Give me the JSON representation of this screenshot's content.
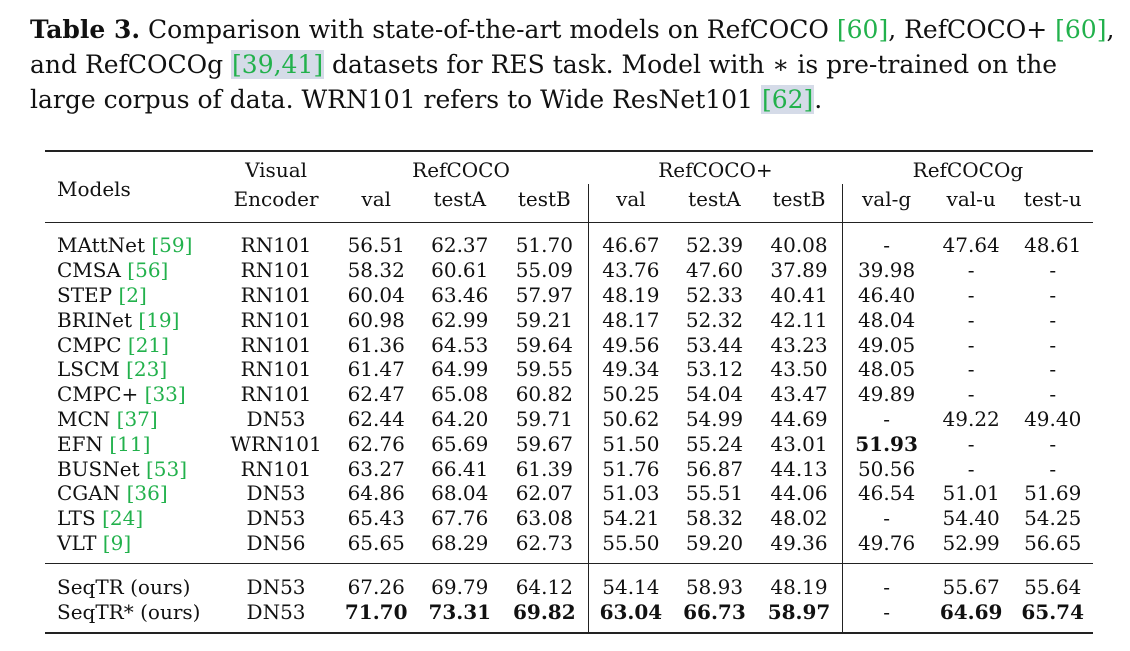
{
  "caption": {
    "label": "Table 3.",
    "text_1": " Comparison with state-of-the-art models on RefCOCO ",
    "cite_1": "[60]",
    "text_2": ", RefCOCO+ ",
    "cite_2": "[60]",
    "text_3": ", and RefCOCOg ",
    "cite_3": "[39,41]",
    "text_4": " datasets for RES task. Model with ∗ is pre-trained on the large corpus of data. WRN101 refers to Wide ResNet101 ",
    "cite_4": "[62]",
    "text_5": "."
  },
  "header": {
    "models": "Models",
    "visual": "Visual",
    "encoder": "Encoder",
    "groups": [
      "RefCOCO",
      "RefCOCO+",
      "RefCOCOg"
    ],
    "cols": [
      "val",
      "testA",
      "testB",
      "val",
      "testA",
      "testB",
      "val-g",
      "val-u",
      "test-u"
    ]
  },
  "rows": [
    {
      "name": "MAttNet ",
      "cite": "[59]",
      "enc": "RN101",
      "v": [
        "56.51",
        "62.37",
        "51.70",
        "46.67",
        "52.39",
        "40.08",
        "-",
        "47.64",
        "48.61"
      ]
    },
    {
      "name": "CMSA ",
      "cite": "[56]",
      "enc": "RN101",
      "v": [
        "58.32",
        "60.61",
        "55.09",
        "43.76",
        "47.60",
        "37.89",
        "39.98",
        "-",
        "-"
      ]
    },
    {
      "name": "STEP ",
      "cite": "[2]",
      "enc": "RN101",
      "v": [
        "60.04",
        "63.46",
        "57.97",
        "48.19",
        "52.33",
        "40.41",
        "46.40",
        "-",
        "-"
      ]
    },
    {
      "name": "BRINet ",
      "cite": "[19]",
      "enc": "RN101",
      "v": [
        "60.98",
        "62.99",
        "59.21",
        "48.17",
        "52.32",
        "42.11",
        "48.04",
        "-",
        "-"
      ]
    },
    {
      "name": "CMPC ",
      "cite": "[21]",
      "enc": "RN101",
      "v": [
        "61.36",
        "64.53",
        "59.64",
        "49.56",
        "53.44",
        "43.23",
        "49.05",
        "-",
        "-"
      ]
    },
    {
      "name": "LSCM ",
      "cite": "[23]",
      "enc": "RN101",
      "v": [
        "61.47",
        "64.99",
        "59.55",
        "49.34",
        "53.12",
        "43.50",
        "48.05",
        "-",
        "-"
      ]
    },
    {
      "name": "CMPC+ ",
      "cite": "[33]",
      "enc": "RN101",
      "v": [
        "62.47",
        "65.08",
        "60.82",
        "50.25",
        "54.04",
        "43.47",
        "49.89",
        "-",
        "-"
      ]
    },
    {
      "name": "MCN ",
      "cite": "[37]",
      "enc": "DN53",
      "v": [
        "62.44",
        "64.20",
        "59.71",
        "50.62",
        "54.99",
        "44.69",
        "-",
        "49.22",
        "49.40"
      ]
    },
    {
      "name": "EFN ",
      "cite": "[11]",
      "enc": "WRN101",
      "v": [
        "62.76",
        "65.69",
        "59.67",
        "51.50",
        "55.24",
        "43.01",
        "51.93",
        "-",
        "-"
      ],
      "bold": [
        6
      ]
    },
    {
      "name": "BUSNet ",
      "cite": "[53]",
      "enc": "RN101",
      "v": [
        "63.27",
        "66.41",
        "61.39",
        "51.76",
        "56.87",
        "44.13",
        "50.56",
        "-",
        "-"
      ]
    },
    {
      "name": "CGAN ",
      "cite": "[36]",
      "enc": "DN53",
      "v": [
        "64.86",
        "68.04",
        "62.07",
        "51.03",
        "55.51",
        "44.06",
        "46.54",
        "51.01",
        "51.69"
      ]
    },
    {
      "name": "LTS ",
      "cite": "[24]",
      "enc": "DN53",
      "v": [
        "65.43",
        "67.76",
        "63.08",
        "54.21",
        "58.32",
        "48.02",
        "-",
        "54.40",
        "54.25"
      ]
    },
    {
      "name": "VLT ",
      "cite": "[9]",
      "enc": "DN56",
      "v": [
        "65.65",
        "68.29",
        "62.73",
        "55.50",
        "59.20",
        "49.36",
        "49.76",
        "52.99",
        "56.65"
      ]
    }
  ],
  "ours": [
    {
      "name": "SeqTR (ours)",
      "enc": "DN53",
      "v": [
        "67.26",
        "69.79",
        "64.12",
        "54.14",
        "58.93",
        "48.19",
        "-",
        "55.67",
        "55.64"
      ],
      "bold": []
    },
    {
      "name": "SeqTR* (ours)",
      "enc": "DN53",
      "v": [
        "71.70",
        "73.31",
        "69.82",
        "63.04",
        "66.73",
        "58.97",
        "-",
        "64.69",
        "65.74"
      ],
      "bold": [
        0,
        1,
        2,
        3,
        4,
        5,
        7,
        8
      ]
    }
  ]
}
